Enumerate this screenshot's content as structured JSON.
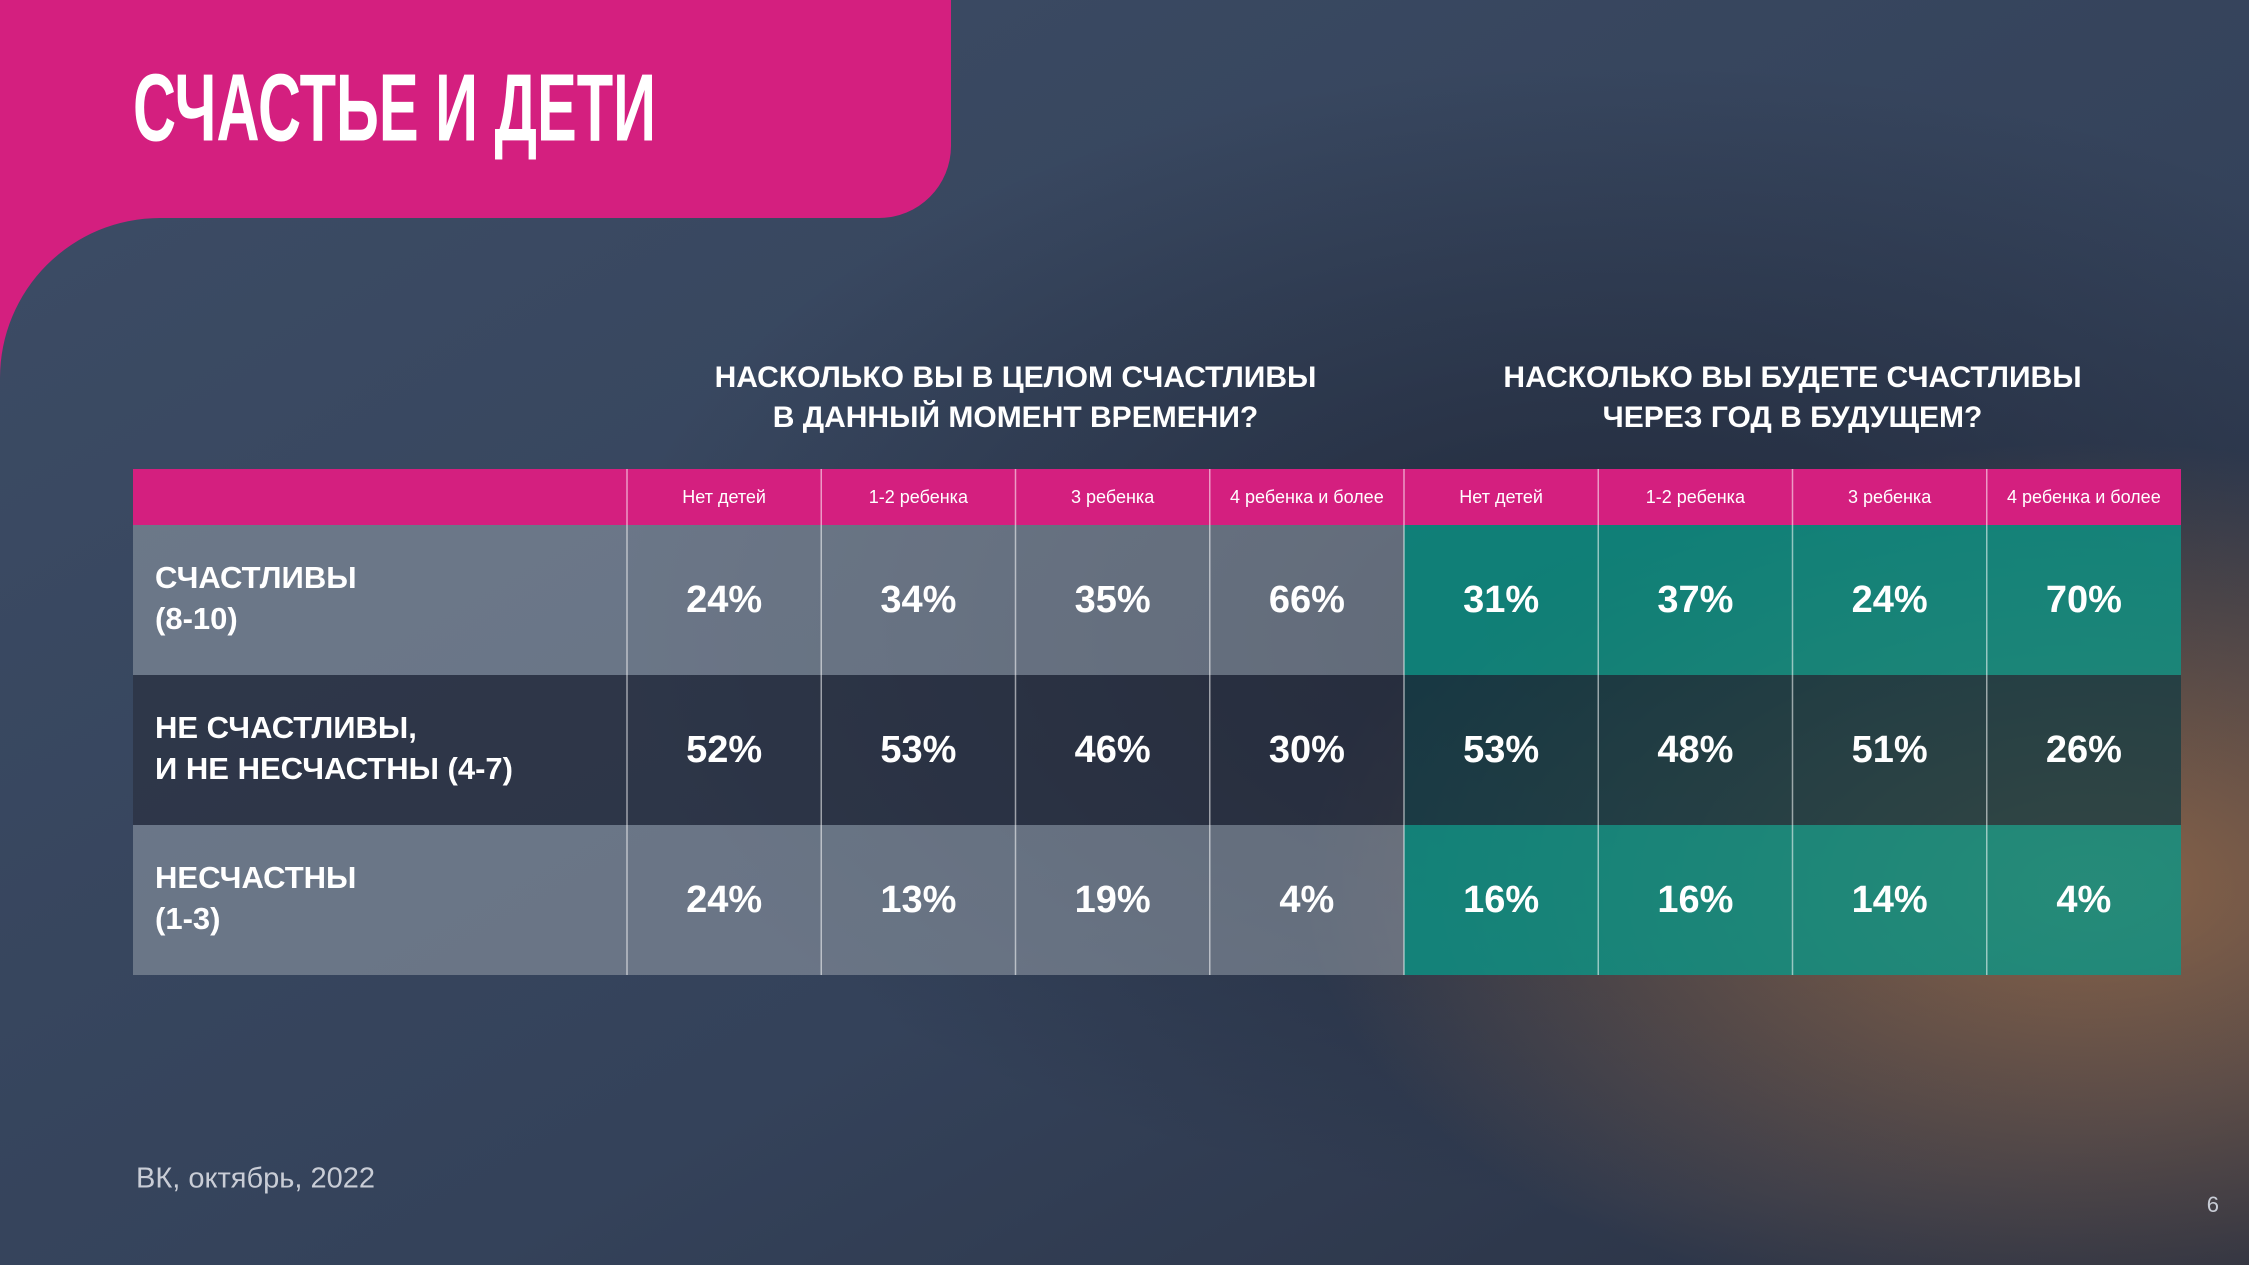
{
  "header": {
    "title": "СЧАСТЬЕ И ДЕТИ"
  },
  "table": {
    "groups": [
      [
        "НАСКОЛЬКО ВЫ В ЦЕЛОМ СЧАСТЛИВЫ",
        "В ДАННЫЙ МОМЕНТ ВРЕМЕНИ?"
      ],
      [
        "НАСКОЛЬКО ВЫ БУДЕТЕ СЧАСТЛИВЫ",
        "ЧЕРЕЗ ГОД В БУДУЩЕМ?"
      ]
    ],
    "columns": [
      "Нет детей",
      "1-2 ребенка",
      "3 ребенка",
      "4 ребенка и более",
      "Нет детей",
      "1-2 ребенка",
      "3 ребенка",
      "4 ребенка и более"
    ],
    "rows": [
      {
        "label": [
          "СЧАСТЛИВЫ",
          "(8-10)"
        ],
        "cells": [
          "24%",
          "34%",
          "35%",
          "66%",
          "31%",
          "37%",
          "24%",
          "70%"
        ]
      },
      {
        "label": [
          "НЕ СЧАСТЛИВЫ,",
          "И НЕ НЕСЧАСТНЫ (4-7)"
        ],
        "cells": [
          "52%",
          "53%",
          "46%",
          "30%",
          "53%",
          "48%",
          "51%",
          "26%"
        ]
      },
      {
        "label": [
          "НЕСЧАСТНЫ",
          "(1-3)"
        ],
        "cells": [
          "24%",
          "13%",
          "19%",
          "4%",
          "16%",
          "16%",
          "14%",
          "4%"
        ]
      }
    ]
  },
  "footer": {
    "source": "ВК, октябрь, 2022",
    "page": 6
  }
}
